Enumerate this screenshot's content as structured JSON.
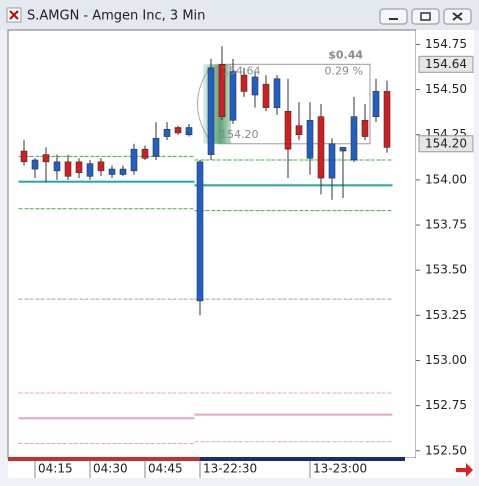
{
  "chart_data": {
    "type": "candlestick",
    "title": "S.AMGN - Amgen Inc, 3 Min",
    "categories": [
      null,
      "04:15",
      null,
      null,
      null,
      null,
      "04:30",
      null,
      null,
      null,
      null,
      "04:45",
      null,
      null,
      null,
      null,
      "13-22:30",
      null,
      null,
      null,
      null,
      null,
      null,
      null,
      null,
      null,
      "13-23:00",
      null,
      null,
      null,
      null,
      null,
      null,
      null
    ],
    "open": [
      154.16,
      154.06,
      154.14,
      154.05,
      154.1,
      154.1,
      154.02,
      154.1,
      154.03,
      154.03,
      154.05,
      154.17,
      154.13,
      154.24,
      154.29,
      154.25,
      153.33,
      154.14,
      154.64,
      154.33,
      154.58,
      154.47,
      154.53,
      154.4,
      154.38,
      154.3,
      154.12,
      154.35,
      154.01,
      154.16,
      154.11,
      154.33,
      154.35,
      154.49
    ],
    "high": [
      154.22,
      154.12,
      154.18,
      154.14,
      154.14,
      154.12,
      154.11,
      154.12,
      154.08,
      154.08,
      154.2,
      154.19,
      154.32,
      154.32,
      154.3,
      154.31,
      154.11,
      154.67,
      154.74,
      154.67,
      154.62,
      154.6,
      154.58,
      154.58,
      154.56,
      154.43,
      154.43,
      154.42,
      154.23,
      154.18,
      154.46,
      154.42,
      154.56,
      154.55
    ],
    "low": [
      154.08,
      154.01,
      153.99,
      154.0,
      154.0,
      154.01,
      154.0,
      154.02,
      154.01,
      154.02,
      154.03,
      154.11,
      154.11,
      154.22,
      154.25,
      154.24,
      153.25,
      154.11,
      154.33,
      154.31,
      154.46,
      154.4,
      154.38,
      154.36,
      154.01,
      154.22,
      154.03,
      153.92,
      153.89,
      153.9,
      154.1,
      154.22,
      154.32,
      154.15
    ],
    "close": [
      154.1,
      154.11,
      154.1,
      154.1,
      154.02,
      154.04,
      154.09,
      154.05,
      154.06,
      154.06,
      154.17,
      154.12,
      154.23,
      154.28,
      154.26,
      154.29,
      154.1,
      154.62,
      154.35,
      154.6,
      154.49,
      154.57,
      154.4,
      154.56,
      154.17,
      154.25,
      154.33,
      154.01,
      154.2,
      154.18,
      154.35,
      154.24,
      154.49,
      154.18
    ],
    "up_color": "#1e5fc8",
    "down_color": "#d21e1e",
    "levels": [
      {
        "color": "#3cb43c",
        "dash": true,
        "values": [
          154.13,
          154.13,
          154.13,
          154.13,
          154.13,
          154.13,
          154.13,
          154.13,
          154.13,
          154.13,
          154.13,
          154.13,
          154.13,
          154.13,
          154.13,
          154.13,
          154.11,
          154.11,
          154.11,
          154.11,
          154.11,
          154.11,
          154.11,
          154.11,
          154.11,
          154.11,
          154.11,
          154.11,
          154.11,
          154.11,
          154.11,
          154.11,
          154.11,
          154.11
        ]
      },
      {
        "color": "#1ea8a8",
        "dash": false,
        "values": [
          153.99,
          153.99,
          153.99,
          153.99,
          153.99,
          153.99,
          153.99,
          153.99,
          153.99,
          153.99,
          153.99,
          153.99,
          153.99,
          153.99,
          153.99,
          153.99,
          153.97,
          153.97,
          153.97,
          153.97,
          153.97,
          153.97,
          153.97,
          153.97,
          153.97,
          153.97,
          153.97,
          153.97,
          153.97,
          153.97,
          153.97,
          153.97,
          153.97,
          153.97
        ]
      },
      {
        "color": "#3cb43c",
        "dash": true,
        "values": [
          153.84,
          153.84,
          153.84,
          153.84,
          153.84,
          153.84,
          153.84,
          153.84,
          153.84,
          153.84,
          153.84,
          153.84,
          153.84,
          153.84,
          153.84,
          153.84,
          153.83,
          153.83,
          153.83,
          153.83,
          153.83,
          153.83,
          153.83,
          153.83,
          153.83,
          153.83,
          153.83,
          153.83,
          153.83,
          153.83,
          153.83,
          153.83,
          153.83,
          153.83
        ]
      },
      {
        "color": "#a0a0a0",
        "dash": true,
        "values": [
          153.34,
          153.34,
          153.34,
          153.34,
          153.34,
          153.34,
          153.34,
          153.34,
          153.34,
          153.34,
          153.34,
          153.34,
          153.34,
          153.34,
          153.34,
          153.34,
          153.34,
          153.34,
          153.34,
          153.34,
          153.34,
          153.34,
          153.34,
          153.34,
          153.34,
          153.34,
          153.34,
          153.34,
          153.34,
          153.34,
          153.34,
          153.34,
          153.34,
          153.34
        ]
      },
      {
        "color": "#f0a0c8",
        "dash": true,
        "values": [
          152.82,
          152.82,
          152.82,
          152.82,
          152.82,
          152.82,
          152.82,
          152.82,
          152.82,
          152.82,
          152.82,
          152.82,
          152.82,
          152.82,
          152.82,
          152.82,
          152.82,
          152.82,
          152.82,
          152.82,
          152.82,
          152.82,
          152.82,
          152.82,
          152.82,
          152.82,
          152.82,
          152.82,
          152.82,
          152.82,
          152.82,
          152.82,
          152.82,
          152.82
        ]
      },
      {
        "color": "#f0a0c8",
        "dash": false,
        "values": [
          152.68,
          152.68,
          152.68,
          152.68,
          152.68,
          152.68,
          152.68,
          152.68,
          152.68,
          152.68,
          152.68,
          152.68,
          152.68,
          152.68,
          152.68,
          152.68,
          152.7,
          152.7,
          152.7,
          152.7,
          152.7,
          152.7,
          152.7,
          152.7,
          152.7,
          152.7,
          152.7,
          152.7,
          152.7,
          152.7,
          152.7,
          152.7,
          152.7,
          152.7
        ]
      },
      {
        "color": "#f0a0c8",
        "dash": true,
        "values": [
          152.54,
          152.54,
          152.54,
          152.54,
          152.54,
          152.54,
          152.54,
          152.54,
          152.54,
          152.54,
          152.54,
          152.54,
          152.54,
          152.54,
          152.54,
          152.54,
          152.55,
          152.55,
          152.55,
          152.55,
          152.55,
          152.55,
          152.55,
          152.55,
          152.55,
          152.55,
          152.55,
          152.55,
          152.55,
          152.55,
          152.55,
          152.55,
          152.55,
          152.55
        ]
      }
    ],
    "price_marks": [
      {
        "value": 154.64,
        "label": "154.64"
      },
      {
        "value": 154.2,
        "label": "154.20"
      }
    ],
    "measure": {
      "change": "$0.44",
      "percent": "0.29 %"
    },
    "ylim": [
      152.46,
      154.83
    ],
    "yticks": [
      {
        "value": 154.75,
        "label": "154.75"
      },
      {
        "value": 154.5,
        "label": "154.50"
      },
      {
        "value": 154.25,
        "label": "154.25"
      },
      {
        "value": 154.0,
        "label": "154.00"
      },
      {
        "value": 153.75,
        "label": "153.75"
      },
      {
        "value": 153.5,
        "label": "153.50"
      },
      {
        "value": 153.25,
        "label": "153.25"
      },
      {
        "value": 153.0,
        "label": "153.00"
      },
      {
        "value": 152.75,
        "label": "152.75"
      },
      {
        "value": 152.5,
        "label": "152.50"
      }
    ]
  }
}
